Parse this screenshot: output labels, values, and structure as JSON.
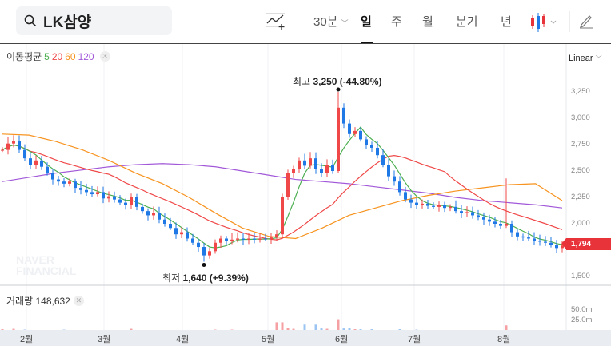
{
  "search": {
    "query": "LK삼양",
    "icon": "search-icon"
  },
  "toolbar": {
    "indicator_icon": "add-indicator-icon",
    "interval": "30분",
    "tabs": [
      "일",
      "주",
      "월",
      "분기",
      "년"
    ],
    "active_tab": "일",
    "chart_type_icon": "candlestick-icon",
    "draw_icon": "pencil-icon"
  },
  "legend": {
    "label": "이동평균",
    "periods": [
      "5",
      "20",
      "60",
      "120"
    ],
    "colors": [
      "#4caf50",
      "#f04848",
      "#f7931e",
      "#a259d9"
    ]
  },
  "scale": {
    "label": "Linear",
    "ticks": [
      "3,250",
      "3,000",
      "2,750",
      "2,500",
      "2,250",
      "2,000",
      "1,500"
    ],
    "tick_values": [
      3250,
      3000,
      2750,
      2500,
      2250,
      2000,
      1500
    ]
  },
  "current_price": "1,794",
  "annotations": {
    "high_label": "최고",
    "high_value": "3,250 (-44.80%)",
    "low_label": "최저",
    "low_value": "1,640 (+9.39%)",
    "high": 3250,
    "high_index": 60,
    "low": 1640,
    "low_index": 36,
    "spike_index": 90,
    "spike_high": 2430
  },
  "watermark": [
    "NAVER",
    "FINANCIAL"
  ],
  "volume": {
    "label": "거래량",
    "value": "148,632",
    "ticks": [
      "50.0m",
      "25.0m"
    ],
    "bars_m": [
      [
        0,
        2
      ],
      [
        2,
        3
      ],
      [
        4,
        1
      ],
      [
        11,
        1
      ],
      [
        23,
        3
      ],
      [
        38,
        1
      ],
      [
        41,
        1
      ],
      [
        49,
        20
      ],
      [
        50,
        20
      ],
      [
        51,
        6
      ],
      [
        52,
        3
      ],
      [
        54,
        14
      ],
      [
        56,
        14
      ],
      [
        57,
        4
      ],
      [
        58,
        3
      ],
      [
        60,
        28
      ],
      [
        61,
        4
      ],
      [
        62,
        5
      ],
      [
        63,
        2
      ],
      [
        64,
        2
      ],
      [
        66,
        2
      ],
      [
        71,
        2
      ],
      [
        74,
        1
      ],
      [
        90,
        12
      ]
    ]
  },
  "months": [
    "2월",
    "3월",
    "4월",
    "5월",
    "6월",
    "7월",
    "8월"
  ],
  "colors": {
    "up": "#f04848",
    "down": "#1e78e6"
  },
  "closes": [
    2700,
    2760,
    2780,
    2700,
    2620,
    2560,
    2600,
    2540,
    2480,
    2420,
    2400,
    2380,
    2400,
    2340,
    2320,
    2300,
    2280,
    2300,
    2240,
    2260,
    2230,
    2200,
    2180,
    2250,
    2160,
    2120,
    2080,
    2100,
    2040,
    2000,
    1960,
    1900,
    1920,
    1860,
    1820,
    1780,
    1700,
    1740,
    1820,
    1860,
    1840,
    1850,
    1860,
    1850,
    1860,
    1850,
    1860,
    1855,
    1870,
    1900,
    2250,
    2480,
    2520,
    2600,
    2550,
    2620,
    2520,
    2480,
    2560,
    2500,
    3100,
    2950,
    2850,
    2880,
    2800,
    2750,
    2720,
    2650,
    2560,
    2450,
    2400,
    2300,
    2230,
    2200,
    2180,
    2190,
    2170,
    2160,
    2180,
    2150,
    2160,
    2120,
    2100,
    2110,
    2080,
    2060,
    2040,
    2020,
    2000,
    1980,
    2000,
    1920,
    1880,
    1870,
    1860,
    1840,
    1830,
    1820,
    1800,
    1770,
    1794
  ],
  "ma60": [
    2850,
    2840,
    2780,
    2700,
    2600,
    2480,
    2380,
    2250,
    2100,
    1960,
    1880,
    1860,
    1960,
    2080,
    2150,
    2220,
    2270,
    2310,
    2340,
    2370,
    2380,
    2220
  ],
  "ma120": [
    2400,
    2440,
    2480,
    2510,
    2540,
    2560,
    2570,
    2560,
    2540,
    2500,
    2460,
    2420,
    2400,
    2380,
    2350,
    2320,
    2290,
    2250,
    2220,
    2200,
    2180,
    2150
  ]
}
